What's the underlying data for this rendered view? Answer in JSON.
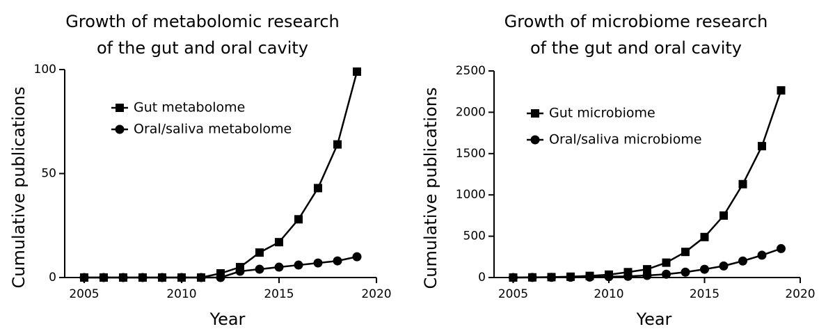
{
  "chart_data": [
    {
      "type": "line",
      "title": [
        "Growth of metabolomic research",
        "of the gut and oral cavity"
      ],
      "x_label": "Year",
      "y_label": "Cumulative publications",
      "x": [
        2005,
        2006,
        2007,
        2008,
        2009,
        2010,
        2011,
        2012,
        2013,
        2014,
        2015,
        2016,
        2017,
        2018,
        2019
      ],
      "series": [
        {
          "name": "Gut metabolome",
          "color": "#000000",
          "marker": "square",
          "values": [
            0,
            0,
            0,
            0,
            0,
            0,
            0,
            2,
            5,
            12,
            17,
            28,
            43,
            64,
            99
          ]
        },
        {
          "name": "Oral/saliva metabolome",
          "color": "#000000",
          "marker": "circle",
          "values": [
            0,
            0,
            0,
            0,
            0,
            0,
            0,
            0,
            3,
            4,
            5,
            6,
            7,
            8,
            10
          ]
        }
      ],
      "xlim": [
        2004,
        2020
      ],
      "xticks": [
        2005,
        2010,
        2015,
        2020
      ],
      "ylim": [
        0,
        100
      ],
      "yticks": [
        0,
        50,
        100
      ],
      "legend": "upper left"
    },
    {
      "type": "line",
      "title": [
        "Growth of microbiome research",
        "of the gut and oral cavity"
      ],
      "x_label": "Year",
      "y_label": "Cumulative publications",
      "x": [
        2005,
        2006,
        2007,
        2008,
        2009,
        2010,
        2011,
        2012,
        2013,
        2014,
        2015,
        2016,
        2017,
        2018,
        2019
      ],
      "series": [
        {
          "name": "Gut microbiome",
          "color": "#000000",
          "marker": "square",
          "values": [
            0,
            2,
            5,
            10,
            20,
            35,
            65,
            100,
            180,
            310,
            490,
            750,
            1130,
            1590,
            2265
          ]
        },
        {
          "name": "Oral/saliva microbiome",
          "color": "#000000",
          "marker": "circle",
          "values": [
            0,
            1,
            2,
            3,
            5,
            10,
            15,
            25,
            40,
            65,
            100,
            140,
            200,
            270,
            350
          ]
        }
      ],
      "xlim": [
        2004,
        2020
      ],
      "xticks": [
        2005,
        2010,
        2015,
        2020
      ],
      "ylim": [
        0,
        2500
      ],
      "yticks": [
        0,
        500,
        1000,
        1500,
        2000,
        2500
      ],
      "legend": "upper left"
    }
  ]
}
